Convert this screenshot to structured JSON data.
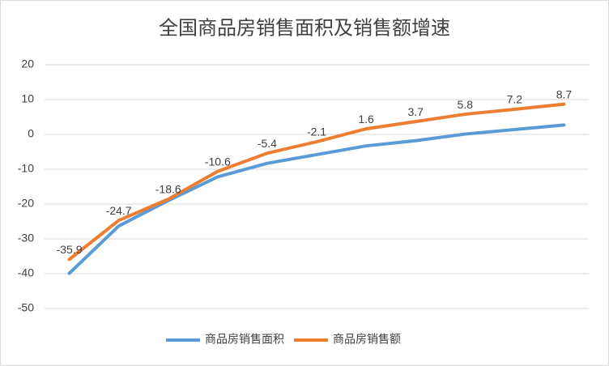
{
  "chart_data": {
    "type": "line",
    "title": "全国商品房销售面积及销售额增速",
    "categories": [
      null,
      null,
      null,
      null,
      null,
      null,
      null,
      null,
      null,
      null,
      null
    ],
    "series": [
      {
        "name": "商品房销售面积",
        "color": "#5b9bd5",
        "values": [
          -39.9,
          -26.3,
          -19.0,
          -12.2,
          -8.3,
          -5.8,
          -3.3,
          -1.8,
          0.1,
          1.4,
          2.7
        ]
      },
      {
        "name": "商品房销售额",
        "color": "#ed7d31",
        "values": [
          -35.9,
          -24.7,
          -18.6,
          -10.6,
          -5.4,
          -2.1,
          1.6,
          3.7,
          5.8,
          7.2,
          8.7
        ],
        "data_labels": true
      }
    ],
    "ylim": [
      -50,
      20
    ],
    "yticks": [
      -50,
      -40,
      -30,
      -20,
      -10,
      0,
      10,
      20
    ],
    "grid": true,
    "legend": "bottom"
  }
}
